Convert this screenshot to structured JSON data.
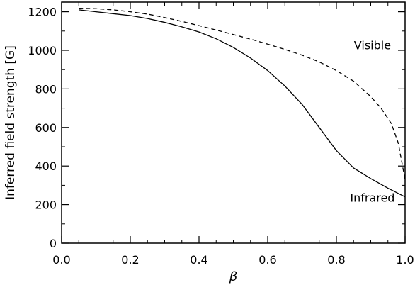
{
  "chart_data": {
    "type": "line",
    "title": "",
    "xlabel": "β",
    "ylabel": "Inferred field strength [G]",
    "xlim": [
      0.0,
      1.0
    ],
    "ylim": [
      0,
      1250
    ],
    "x_ticks": [
      "0.0",
      "0.2",
      "0.4",
      "0.6",
      "0.8",
      "1.0"
    ],
    "y_ticks": [
      "0",
      "200",
      "400",
      "600",
      "800",
      "1000",
      "1200"
    ],
    "grid": false,
    "series": [
      {
        "name": "Infrared",
        "style": "solid",
        "color": "#000000",
        "x": [
          0.05,
          0.1,
          0.15,
          0.2,
          0.25,
          0.3,
          0.35,
          0.4,
          0.45,
          0.5,
          0.55,
          0.6,
          0.65,
          0.7,
          0.75,
          0.8,
          0.85,
          0.9,
          0.95,
          1.0
        ],
        "y": [
          1210,
          1200,
          1190,
          1180,
          1165,
          1145,
          1122,
          1095,
          1060,
          1015,
          960,
          895,
          815,
          720,
          600,
          480,
          390,
          335,
          285,
          240
        ]
      },
      {
        "name": "Visible",
        "style": "dashed",
        "color": "#000000",
        "x": [
          0.05,
          0.1,
          0.15,
          0.2,
          0.25,
          0.3,
          0.35,
          0.4,
          0.45,
          0.5,
          0.55,
          0.6,
          0.65,
          0.7,
          0.75,
          0.8,
          0.85,
          0.9,
          0.93,
          0.96,
          0.98,
          1.0
        ],
        "y": [
          1218,
          1216,
          1210,
          1200,
          1188,
          1170,
          1150,
          1128,
          1105,
          1082,
          1058,
          1032,
          1005,
          975,
          940,
          895,
          840,
          760,
          700,
          620,
          520,
          330
        ]
      }
    ],
    "annotations": [
      {
        "text": "Visible",
        "x": 0.905,
        "y": 1005
      },
      {
        "text": "Infrared",
        "x": 0.905,
        "y": 215
      }
    ]
  }
}
